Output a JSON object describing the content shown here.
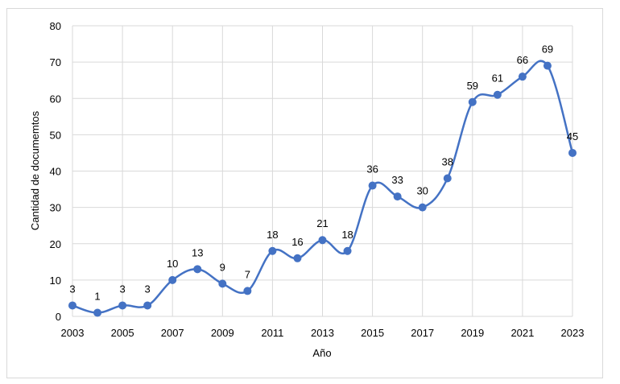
{
  "chart_data": {
    "type": "line",
    "xlabel": "Año",
    "ylabel": "Cantidad de documemtos",
    "ylim": [
      0,
      80
    ],
    "yticks": [
      0,
      10,
      20,
      30,
      40,
      50,
      60,
      70,
      80
    ],
    "xlim": [
      2003,
      2023
    ],
    "xticks": [
      2003,
      2005,
      2007,
      2009,
      2011,
      2013,
      2015,
      2017,
      2019,
      2021,
      2023
    ],
    "grid": true,
    "smoothed": true,
    "series": [
      {
        "color": "#4472c4",
        "x": [
          2003,
          2004,
          2005,
          2006,
          2007,
          2008,
          2009,
          2010,
          2011,
          2012,
          2013,
          2014,
          2015,
          2016,
          2017,
          2018,
          2019,
          2020,
          2021,
          2022,
          2023
        ],
        "values": [
          3,
          1,
          3,
          3,
          10,
          13,
          9,
          7,
          18,
          16,
          21,
          18,
          36,
          33,
          30,
          38,
          59,
          61,
          66,
          69,
          45
        ]
      }
    ]
  }
}
